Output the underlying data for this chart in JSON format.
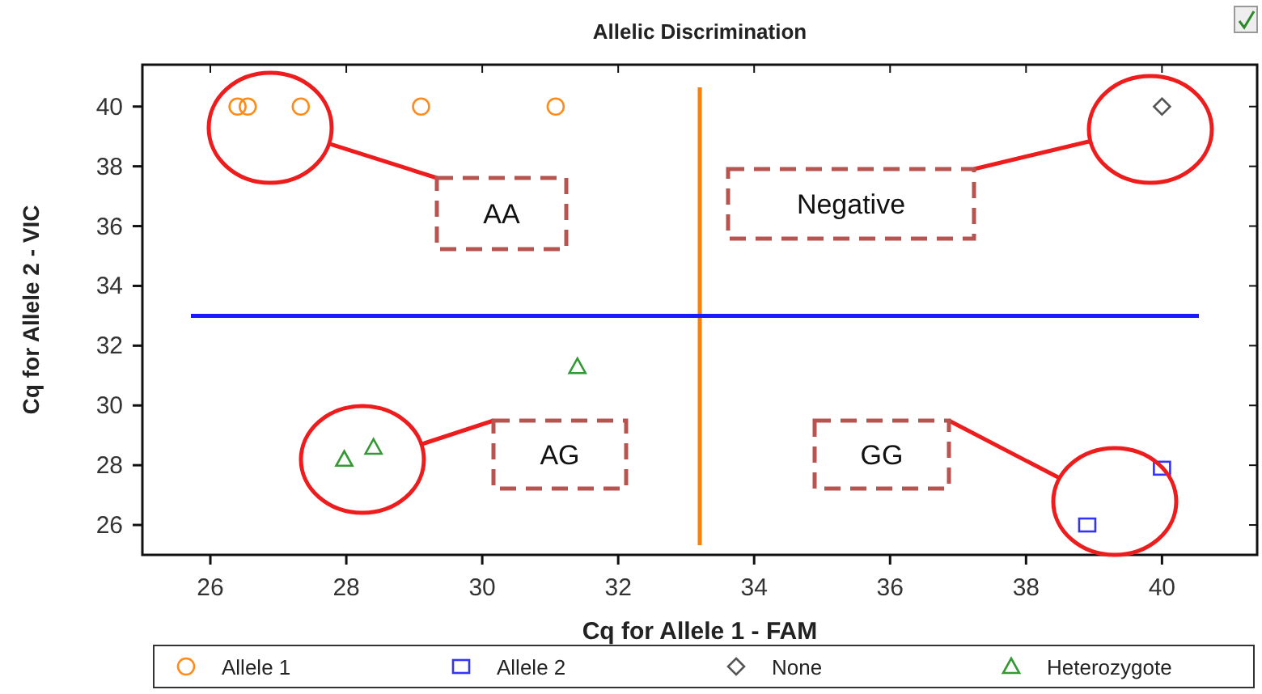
{
  "chart_data": {
    "type": "scatter",
    "title": "Allelic Discrimination",
    "xlabel": "Cq for Allele 1 - FAM",
    "ylabel": "Cq for Allele 2 - VIC",
    "xlim": [
      25,
      41.4
    ],
    "ylim": [
      25,
      41.4
    ],
    "xticks": [
      26,
      28,
      30,
      32,
      34,
      36,
      38,
      40
    ],
    "yticks": [
      26,
      28,
      30,
      32,
      34,
      36,
      38,
      40
    ],
    "grid": false,
    "legend": "bottom",
    "series": [
      {
        "name": "Allele 1",
        "color": "#ff8c1a",
        "marker": "circle",
        "x": [
          26.4,
          26.55,
          27.33,
          29.1,
          31.08
        ],
        "values": [
          40,
          40,
          40,
          40,
          40
        ]
      },
      {
        "name": "Allele 2",
        "color": "#3333ff",
        "marker": "square",
        "x": [
          38.9,
          40
        ],
        "values": [
          26,
          27.9
        ]
      },
      {
        "name": "None",
        "color": "#555555",
        "marker": "diamond",
        "x": [
          40
        ],
        "values": [
          40
        ]
      },
      {
        "name": "Heterozygote",
        "color": "#339933",
        "marker": "triangle",
        "x": [
          27.97,
          28.4,
          31.4
        ],
        "values": [
          28.2,
          28.6,
          31.3
        ]
      }
    ],
    "ref_lines": [
      {
        "axis": "x",
        "value": 33.2,
        "color": "#ff8000"
      },
      {
        "axis": "y",
        "value": 33,
        "color": "#1a1aff"
      }
    ],
    "annotations": [
      "AA",
      "Negative",
      "AG",
      "GG"
    ]
  }
}
